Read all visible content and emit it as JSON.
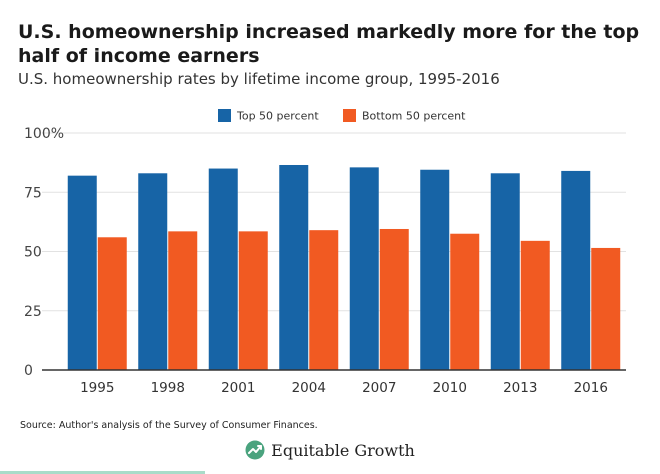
{
  "header": {
    "title": "U.S. homeownership increased markedly more for the top half of income earners",
    "subtitle": "U.S. homeownership rates by lifetime income group, 1995-2016"
  },
  "footer": {
    "source": "Source: Author's analysis of the Survey of Consumer Finances.",
    "brand": "Equitable Growth"
  },
  "colors": {
    "top50": "#1764a6",
    "bottom50": "#f15a22",
    "grid": "#e2e2e2",
    "axis": "#333333",
    "logo": "#4aa37e"
  },
  "chart_data": {
    "type": "bar",
    "title": "U.S. homeownership rates by lifetime income group, 1995-2016",
    "xlabel": "",
    "ylabel": "",
    "categories": [
      "1995",
      "1998",
      "2001",
      "2004",
      "2007",
      "2010",
      "2013",
      "2016"
    ],
    "series": [
      {
        "name": "Top 50 percent",
        "color": "#1764a6",
        "values": [
          82,
          83,
          85,
          86.5,
          85.5,
          84.5,
          83,
          84
        ]
      },
      {
        "name": "Bottom 50 percent",
        "color": "#f15a22",
        "values": [
          56,
          58.5,
          58.5,
          59,
          59.5,
          57.5,
          54.5,
          51.5
        ]
      }
    ],
    "ylim": [
      0,
      100
    ],
    "yticks": [
      0,
      25,
      50,
      75,
      100
    ],
    "ytick_labels": [
      "0",
      "25",
      "50",
      "75",
      "100%"
    ],
    "grid": true,
    "legend": "top-center"
  }
}
